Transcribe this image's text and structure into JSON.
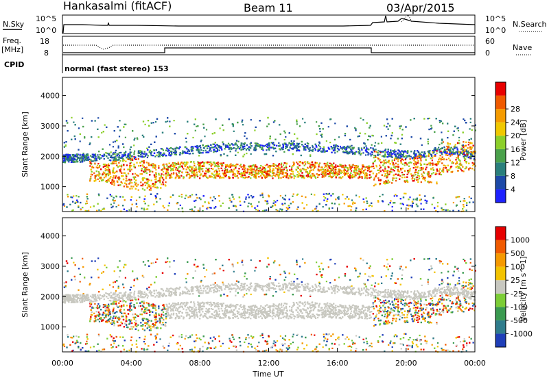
{
  "header": {
    "title_left": "Hankasalmi (fitACF)",
    "title_center": "Beam 11",
    "title_right": "03/Apr/2015"
  },
  "summary_panels": {
    "nsky_label": "N.Sky",
    "nsky_ticks": [
      "10^5",
      "10^0"
    ],
    "nsearch_label": "N.Search",
    "nsearch_ticks": [
      "10^5",
      "10^0"
    ],
    "freq_label": "Freq.",
    "freq_unit": "[MHz]",
    "freq_ticks": [
      "18",
      "8"
    ],
    "nave_label": "Nave",
    "nave_ticks": [
      "60",
      "0"
    ],
    "cpid_label": "CPID",
    "cpid_text": "normal (fast stereo) 153"
  },
  "chart_data": [
    {
      "type": "heatmap",
      "panel": "power",
      "ylabel": "Slant Range [km]",
      "xlabel": "Time UT",
      "xlim": [
        "00:00",
        "24:00"
      ],
      "ylim": [
        180,
        4600
      ],
      "yticks": [
        "1000",
        "2000",
        "3000",
        "4000"
      ],
      "xticks": [
        "00:00",
        "04:00",
        "08:00",
        "12:00",
        "16:00",
        "20:00",
        "00:00"
      ],
      "colorbar": {
        "label": "Power [dB]",
        "ticks": [
          "4",
          "8",
          "12",
          "16",
          "20",
          "24",
          "28"
        ],
        "colors": [
          "#1e22ff",
          "#1d4aa8",
          "#2a7f7c",
          "#4aa14b",
          "#8ccf2a",
          "#f0c800",
          "#f59b00",
          "#f05a00",
          "#e80000"
        ]
      },
      "features": [
        {
          "description": "band",
          "t_start_h": 1.5,
          "t_end_h": 24,
          "range_km": [
            1300,
            2200
          ]
        }
      ]
    },
    {
      "type": "heatmap",
      "panel": "velocity",
      "ylabel": "Slant Range [km]",
      "xlim": [
        "00:00",
        "24:00"
      ],
      "ylim": [
        180,
        4600
      ],
      "yticks": [
        "1000",
        "2000",
        "3000",
        "4000"
      ],
      "colorbar": {
        "label": "Velocity [m s^-1]",
        "ticks": [
          "1000",
          "500",
          "100",
          "25",
          "-25",
          "-100",
          "-500",
          "-1000"
        ],
        "colors": [
          "#1f3fb8",
          "#2f7c8c",
          "#3a9a50",
          "#7ccd36",
          "#c8c8c0",
          "#f3c300",
          "#f59900",
          "#f05a00",
          "#e60000"
        ]
      }
    }
  ],
  "colors": {
    "ground": "#c8c8c0"
  }
}
